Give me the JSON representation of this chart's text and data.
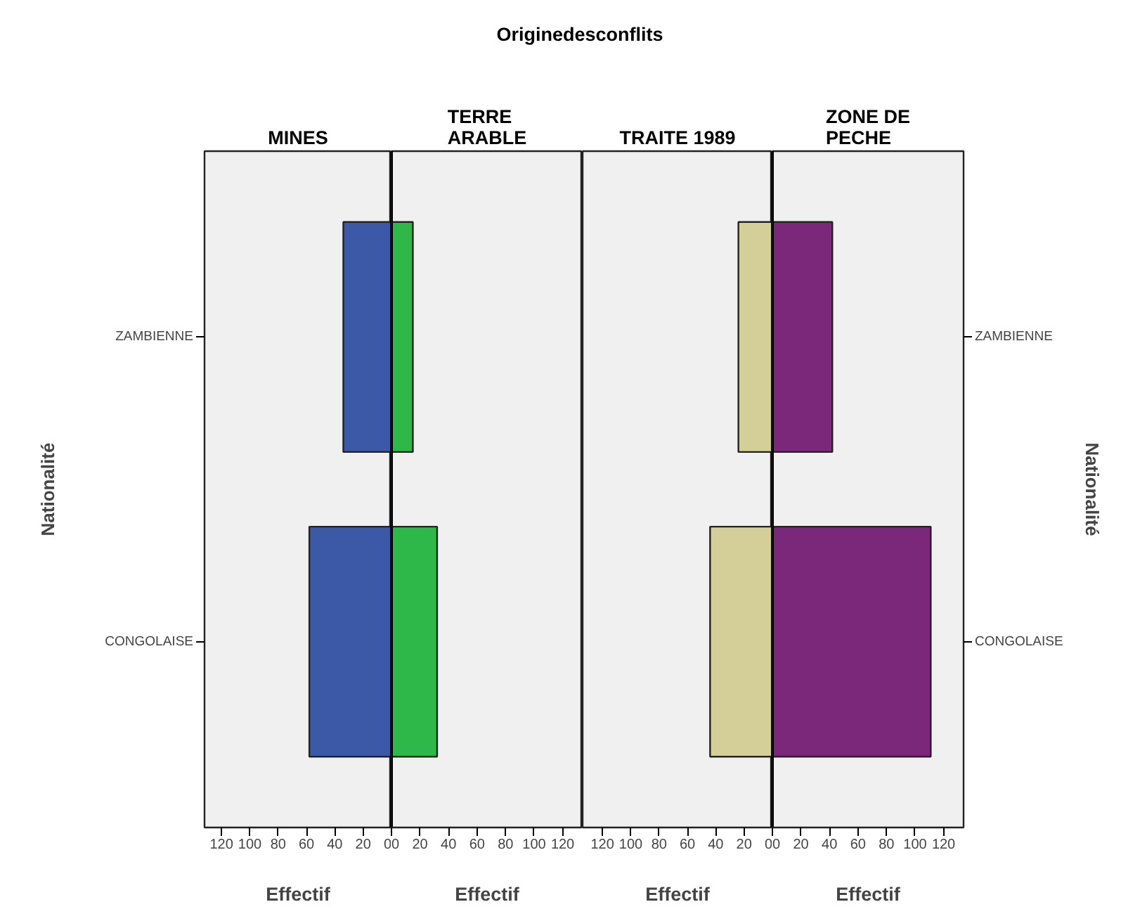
{
  "chart_data": [
    {
      "type": "bar",
      "orientation": "horizontal",
      "title": "MINES",
      "annotations": [
        "Originedesconflits"
      ],
      "ylabel": "Nationalité",
      "xlabel": "Effectif",
      "categories": [
        "ZAMBIENNE",
        "CONGOLAISE"
      ],
      "values": [
        34,
        58
      ],
      "color": "#3c59a8",
      "xlim": [
        132,
        0
      ],
      "xticks": [
        0,
        20,
        40,
        60,
        80,
        100,
        120
      ]
    },
    {
      "type": "bar",
      "orientation": "horizontal",
      "title": "TERRE\nARABLE",
      "xlabel": "Effectif",
      "categories": [
        null,
        null
      ],
      "values": [
        15,
        32
      ],
      "color": "#2fb84a",
      "xlim": [
        0,
        134
      ],
      "xticks": [
        0,
        20,
        40,
        60,
        80,
        100,
        120
      ],
      "tick_labels": "x"
    },
    {
      "type": "bar",
      "orientation": "horizontal",
      "title": "TRAITE 1989",
      "xlabel": "Effectif",
      "categories": [
        null,
        null
      ],
      "values": [
        24,
        44
      ],
      "color": "#d4cf98",
      "xlim": [
        134,
        0
      ],
      "xticks": [
        0,
        20,
        40,
        60,
        80,
        100,
        120
      ],
      "tick_labels": "x"
    },
    {
      "type": "bar",
      "orientation": "horizontal",
      "title": "ZONE DE\nPECHE",
      "ylabel": "Nationalité",
      "xlabel": "Effectif",
      "categories": [
        "ZAMBIENNE",
        "CONGOLAISE"
      ],
      "values": [
        42,
        111
      ],
      "color": "#7b287b",
      "xlim": [
        0,
        134
      ],
      "xticks": [
        0,
        20,
        40,
        60,
        80,
        100,
        120
      ]
    }
  ]
}
